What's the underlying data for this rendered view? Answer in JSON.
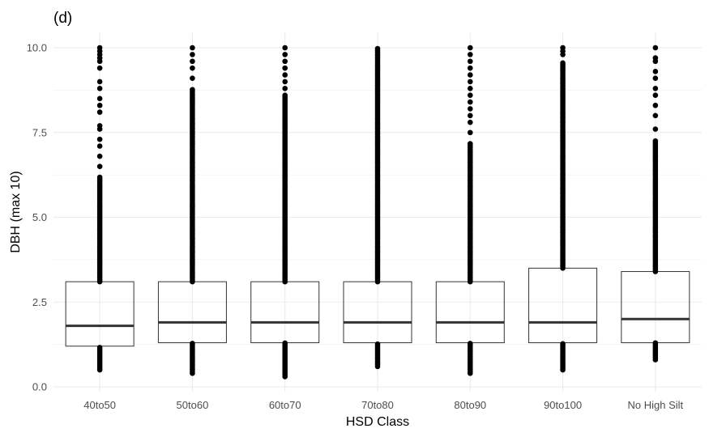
{
  "chart_data": {
    "type": "box",
    "tag": "(d)",
    "xlabel": "HSD Class",
    "ylabel": "DBH (max 10)",
    "categories": [
      "40to50",
      "50to60",
      "60to70",
      "70to80",
      "80to90",
      "90to100",
      "No High Silt"
    ],
    "ylim": [
      0,
      10.5
    ],
    "yticks": [
      0.0,
      2.5,
      5.0,
      7.5,
      10.0
    ],
    "ytick_labels": [
      "0.0",
      "2.5",
      "5.0",
      "7.5",
      "10.0"
    ],
    "grid": true,
    "boxes": [
      {
        "category": "40to50",
        "q1": 1.2,
        "median": 1.8,
        "q3": 3.1,
        "whisker_low": 1.2,
        "whisker_high": 3.1,
        "outlier_ranges": [
          [
            0.5,
            1.2
          ],
          [
            3.1,
            6.2
          ]
        ],
        "outliers": [
          6.5,
          6.8,
          7.1,
          7.3,
          7.6,
          7.7,
          8.1,
          8.3,
          8.5,
          8.8,
          9.0,
          9.4,
          9.6,
          9.7,
          9.8,
          9.9,
          10.0
        ]
      },
      {
        "category": "50to60",
        "q1": 1.3,
        "median": 1.9,
        "q3": 3.1,
        "whisker_low": 1.3,
        "whisker_high": 3.1,
        "outlier_ranges": [
          [
            0.4,
            1.3
          ],
          [
            3.1,
            8.8
          ]
        ],
        "outliers": [
          9.1,
          9.4,
          9.6,
          9.8,
          10.0
        ]
      },
      {
        "category": "60to70",
        "q1": 1.3,
        "median": 1.9,
        "q3": 3.1,
        "whisker_low": 1.3,
        "whisker_high": 3.1,
        "outlier_ranges": [
          [
            0.3,
            1.3
          ],
          [
            3.1,
            8.6
          ]
        ],
        "outliers": [
          8.8,
          9.0,
          9.2,
          9.4,
          9.6,
          9.8,
          10.0
        ]
      },
      {
        "category": "70to80",
        "q1": 1.3,
        "median": 1.9,
        "q3": 3.1,
        "whisker_low": 1.3,
        "whisker_high": 3.1,
        "outlier_ranges": [
          [
            0.6,
            1.3
          ],
          [
            3.1,
            10.0
          ]
        ],
        "outliers": []
      },
      {
        "category": "80to90",
        "q1": 1.3,
        "median": 1.9,
        "q3": 3.1,
        "whisker_low": 1.3,
        "whisker_high": 3.1,
        "outlier_ranges": [
          [
            0.4,
            1.3
          ],
          [
            3.1,
            7.2
          ]
        ],
        "outliers": [
          7.5,
          7.8,
          8.0,
          8.2,
          8.4,
          8.6,
          8.8,
          9.0,
          9.2,
          9.4,
          9.6,
          9.8,
          10.0
        ]
      },
      {
        "category": "90to100",
        "q1": 1.3,
        "median": 1.9,
        "q3": 3.5,
        "whisker_low": 1.3,
        "whisker_high": 3.5,
        "outlier_ranges": [
          [
            0.5,
            1.3
          ],
          [
            3.5,
            9.6
          ]
        ],
        "outliers": [
          9.8,
          9.9,
          10.0
        ]
      },
      {
        "category": "No High Silt",
        "q1": 1.3,
        "median": 2.0,
        "q3": 3.4,
        "whisker_low": 1.3,
        "whisker_high": 3.4,
        "outlier_ranges": [
          [
            0.8,
            1.3
          ],
          [
            3.4,
            7.3
          ]
        ],
        "outliers": [
          7.6,
          8.0,
          8.3,
          8.6,
          8.8,
          9.1,
          9.3,
          9.6,
          9.7,
          10.0
        ]
      }
    ],
    "colors": {
      "points": "#000000",
      "box_border": "#333333",
      "median": "#333333",
      "grid": "#ebebeb",
      "tick_text": "#4d4d4d"
    }
  }
}
